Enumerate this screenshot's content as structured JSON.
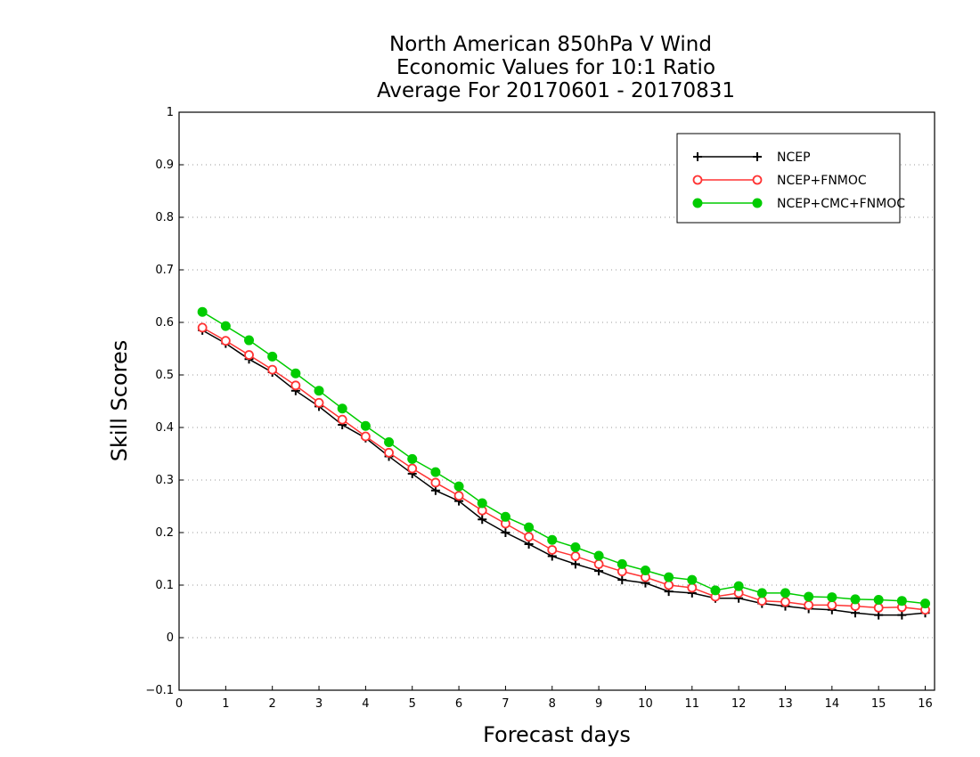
{
  "chart_data": {
    "type": "line",
    "title_lines": [
      "North American 850hPa V Wind",
      "Economic Values for 10:1 Ratio",
      "Average For 20170601 - 20170831"
    ],
    "xlabel": "Forecast days",
    "ylabel": "Skill Scores",
    "xlim": [
      0,
      16.2
    ],
    "ylim": [
      -0.1,
      1
    ],
    "x_ticks": [
      0,
      1,
      2,
      3,
      4,
      5,
      6,
      7,
      8,
      9,
      10,
      11,
      12,
      13,
      14,
      15,
      16
    ],
    "y_ticks": [
      -0.1,
      0,
      0.1,
      0.2,
      0.3,
      0.4,
      0.5,
      0.6,
      0.7,
      0.8,
      0.9,
      1
    ],
    "y_tick_labels": [
      "−0.1",
      "0",
      "0.1",
      "0.2",
      "0.3",
      "0.4",
      "0.5",
      "0.6",
      "0.7",
      "0.8",
      "0.9",
      "1"
    ],
    "grid": "horizontal dotted",
    "legend_position": "top-right",
    "x": [
      0.5,
      1,
      1.5,
      2,
      2.5,
      3,
      3.5,
      4,
      4.5,
      5,
      5.5,
      6,
      6.5,
      7,
      7.5,
      8,
      8.5,
      9,
      9.5,
      10,
      10.5,
      11,
      11.5,
      12,
      12.5,
      13,
      13.5,
      14,
      14.5,
      15,
      15.5,
      16
    ],
    "series": [
      {
        "name": "NCEP",
        "color": "#000000",
        "marker": "plus",
        "values": [
          0.585,
          0.56,
          0.53,
          0.505,
          0.47,
          0.44,
          0.405,
          0.38,
          0.345,
          0.312,
          0.28,
          0.26,
          0.225,
          0.2,
          0.178,
          0.155,
          0.14,
          0.127,
          0.11,
          0.104,
          0.088,
          0.085,
          0.075,
          0.075,
          0.065,
          0.06,
          0.055,
          0.053,
          0.047,
          0.043,
          0.043,
          0.047
        ]
      },
      {
        "name": "NCEP+FNMOC",
        "color": "#ff3333",
        "marker": "open-circle",
        "values": [
          0.59,
          0.565,
          0.538,
          0.51,
          0.48,
          0.447,
          0.415,
          0.383,
          0.352,
          0.322,
          0.295,
          0.27,
          0.242,
          0.217,
          0.192,
          0.167,
          0.155,
          0.14,
          0.126,
          0.115,
          0.1,
          0.095,
          0.078,
          0.085,
          0.07,
          0.068,
          0.062,
          0.062,
          0.06,
          0.057,
          0.058,
          0.053
        ]
      },
      {
        "name": "NCEP+CMC+FNMOC",
        "color": "#00cc00",
        "marker": "filled-circle",
        "values": [
          0.62,
          0.593,
          0.566,
          0.535,
          0.503,
          0.47,
          0.436,
          0.403,
          0.372,
          0.34,
          0.315,
          0.288,
          0.256,
          0.23,
          0.21,
          0.186,
          0.172,
          0.156,
          0.14,
          0.128,
          0.115,
          0.11,
          0.09,
          0.098,
          0.085,
          0.085,
          0.078,
          0.077,
          0.073,
          0.072,
          0.07,
          0.065
        ]
      }
    ]
  }
}
